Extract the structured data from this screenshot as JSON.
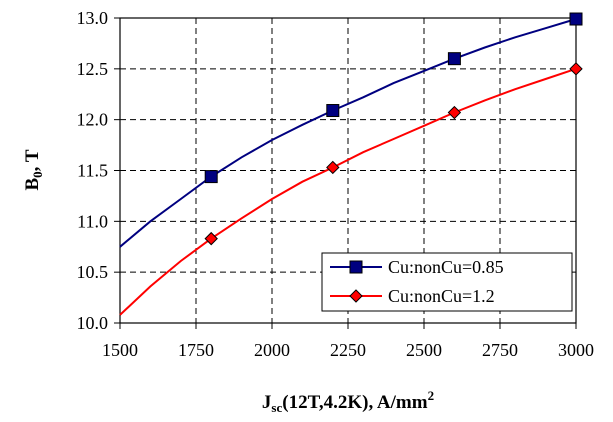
{
  "chart_data": {
    "type": "line",
    "title": "",
    "xlabel": {
      "main": "J",
      "sub": "sc",
      "rest": "(12T,4.2K), A/mm",
      "sup": "2"
    },
    "ylabel": {
      "main": "B",
      "sub": "0",
      "rest": ", T"
    },
    "xlim": [
      1500,
      3000
    ],
    "ylim": [
      10.0,
      13.0
    ],
    "x_ticks": [
      "1500",
      "1750",
      "2000",
      "2250",
      "2500",
      "2750",
      "3000"
    ],
    "y_ticks": [
      "10.0",
      "10.5",
      "11.0",
      "11.5",
      "12.0",
      "12.5",
      "13.0"
    ],
    "grid": true,
    "legend_position": "bottom-right",
    "series": [
      {
        "name": "Cu:nonCu=0.85",
        "color": "#000080",
        "marker": "square",
        "marker_fill": "#000080",
        "points": [
          [
            1800,
            11.44
          ],
          [
            2200,
            12.09
          ],
          [
            2600,
            12.6
          ],
          [
            3000,
            12.99
          ]
        ],
        "curve": [
          [
            1500,
            10.75
          ],
          [
            1600,
            11.0
          ],
          [
            1700,
            11.22
          ],
          [
            1800,
            11.44
          ],
          [
            1900,
            11.63
          ],
          [
            2000,
            11.8
          ],
          [
            2100,
            11.95
          ],
          [
            2200,
            12.09
          ],
          [
            2300,
            12.22
          ],
          [
            2400,
            12.36
          ],
          [
            2500,
            12.48
          ],
          [
            2600,
            12.6
          ],
          [
            2700,
            12.71
          ],
          [
            2800,
            12.81
          ],
          [
            2900,
            12.9
          ],
          [
            3000,
            12.99
          ]
        ]
      },
      {
        "name": "Cu:nonCu=1.2",
        "color": "#ff0000",
        "marker": "diamond",
        "marker_fill": "#ff0000",
        "points": [
          [
            1800,
            10.83
          ],
          [
            2200,
            11.53
          ],
          [
            2600,
            12.07
          ],
          [
            3000,
            12.5
          ]
        ],
        "curve": [
          [
            1500,
            10.08
          ],
          [
            1600,
            10.36
          ],
          [
            1700,
            10.61
          ],
          [
            1800,
            10.83
          ],
          [
            1900,
            11.03
          ],
          [
            2000,
            11.22
          ],
          [
            2100,
            11.39
          ],
          [
            2200,
            11.53
          ],
          [
            2300,
            11.68
          ],
          [
            2400,
            11.81
          ],
          [
            2500,
            11.94
          ],
          [
            2600,
            12.07
          ],
          [
            2700,
            12.19
          ],
          [
            2800,
            12.3
          ],
          [
            2900,
            12.4
          ],
          [
            3000,
            12.5
          ]
        ]
      }
    ]
  }
}
